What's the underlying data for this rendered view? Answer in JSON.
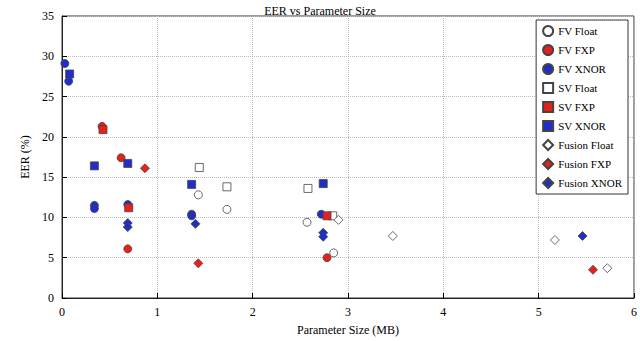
{
  "chart_data": {
    "type": "scatter",
    "title": "EER vs Parameter Size",
    "x_label": "Parameter Size (MB)",
    "y_label": "EER (%)",
    "xlim": [
      0,
      6
    ],
    "xticks": [
      0,
      1,
      2,
      3,
      4,
      5,
      6
    ],
    "ylim": [
      0,
      35
    ],
    "yticks": [
      0,
      5,
      10,
      15,
      20,
      25,
      30,
      35
    ],
    "grid": true,
    "legend": "upper right",
    "series": [
      {
        "name": "FV Float",
        "color": "#ffffff",
        "marker": "circle",
        "x": [
          1.43,
          1.73,
          2.57,
          2.85
        ],
        "values": [
          12.8,
          11.0,
          9.4,
          5.6
        ]
      },
      {
        "name": "FV FXP",
        "color": "#e8201c",
        "marker": "circle",
        "x": [
          0.42,
          0.62,
          0.69,
          2.78
        ],
        "values": [
          21.3,
          17.4,
          6.1,
          5.0
        ]
      },
      {
        "name": "FV XNOR",
        "color": "#1f2ec8",
        "marker": "circle",
        "x": [
          0.03,
          0.07,
          0.34,
          0.34,
          0.69,
          1.36,
          1.36,
          2.72
        ],
        "values": [
          29.1,
          26.9,
          11.5,
          11.1,
          11.6,
          10.4,
          10.2,
          10.4
        ]
      },
      {
        "name": "SV Float",
        "color": "#ffffff",
        "marker": "square",
        "x": [
          1.44,
          1.73,
          2.58,
          2.84
        ],
        "values": [
          16.2,
          13.8,
          13.6,
          10.2
        ]
      },
      {
        "name": "SV FXP",
        "color": "#e8201c",
        "marker": "square",
        "x": [
          0.43,
          0.7,
          2.78
        ],
        "values": [
          20.9,
          11.2,
          10.2
        ]
      },
      {
        "name": "SV XNOR",
        "color": "#1f2ec8",
        "marker": "square",
        "x": [
          0.08,
          0.34,
          0.69,
          1.36,
          2.74
        ],
        "values": [
          27.8,
          16.4,
          16.7,
          14.1,
          14.2
        ]
      },
      {
        "name": "Fusion Float",
        "color": "#ffffff",
        "marker": "diamond",
        "x": [
          2.9,
          3.47,
          5.17,
          5.72
        ],
        "values": [
          9.7,
          7.7,
          7.2,
          3.7
        ]
      },
      {
        "name": "Fusion FXP",
        "color": "#e8201c",
        "marker": "diamond",
        "x": [
          0.87,
          1.43,
          5.57
        ],
        "values": [
          16.1,
          4.3,
          3.5
        ]
      },
      {
        "name": "Fusion XNOR",
        "color": "#1f2ec8",
        "marker": "diamond",
        "x": [
          0.69,
          0.69,
          1.4,
          2.74,
          2.74,
          5.46
        ],
        "values": [
          9.3,
          8.8,
          9.2,
          8.1,
          7.6,
          7.7
        ]
      }
    ]
  }
}
